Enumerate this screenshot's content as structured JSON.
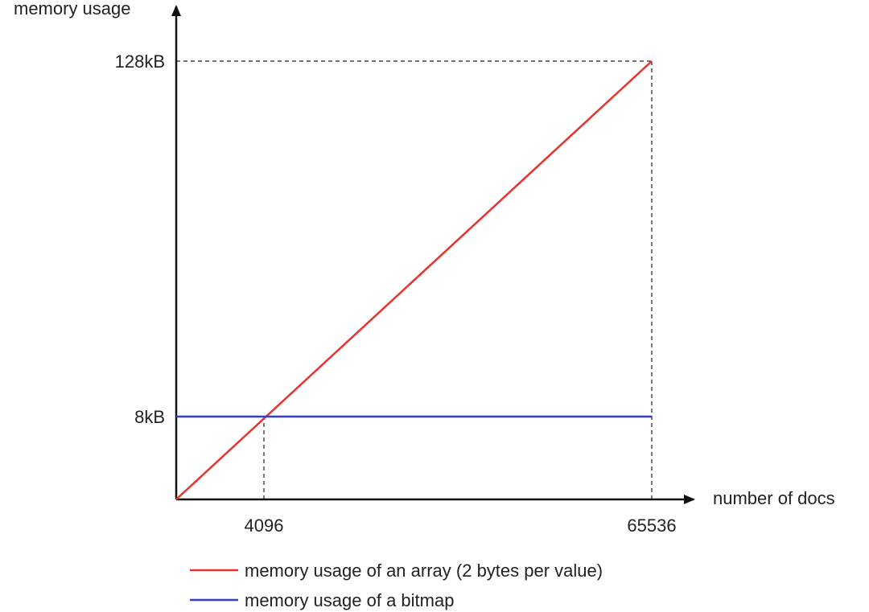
{
  "chart_data": {
    "type": "line",
    "title": "",
    "xlabel": "number of docs",
    "ylabel": "memory usage",
    "x_ticks": [
      {
        "value": 4096,
        "label": "4096"
      },
      {
        "value": 65536,
        "label": "65536"
      }
    ],
    "y_ticks": [
      {
        "value": 8,
        "label": "8kB"
      },
      {
        "value": 128,
        "label": "128kB"
      }
    ],
    "y_unit": "kB",
    "xlim": [
      0,
      65536
    ],
    "ylim": [
      0,
      128
    ],
    "grid": false,
    "legend_position": "bottom-left",
    "series": [
      {
        "name": "memory usage of an array (2 bytes per value)",
        "color": "#e8322d",
        "points": [
          [
            0,
            0
          ],
          [
            65536,
            128
          ]
        ]
      },
      {
        "name": "memory usage of a bitmap",
        "color": "#2f3fd6",
        "points": [
          [
            0,
            8
          ],
          [
            65536,
            8
          ]
        ]
      }
    ],
    "reference_lines": [
      {
        "from": [
          4096,
          0
        ],
        "to": [
          4096,
          8
        ]
      },
      {
        "from": [
          65536,
          0
        ],
        "to": [
          65536,
          128
        ]
      },
      {
        "from": [
          0,
          128
        ],
        "to": [
          65536,
          128
        ]
      }
    ]
  }
}
